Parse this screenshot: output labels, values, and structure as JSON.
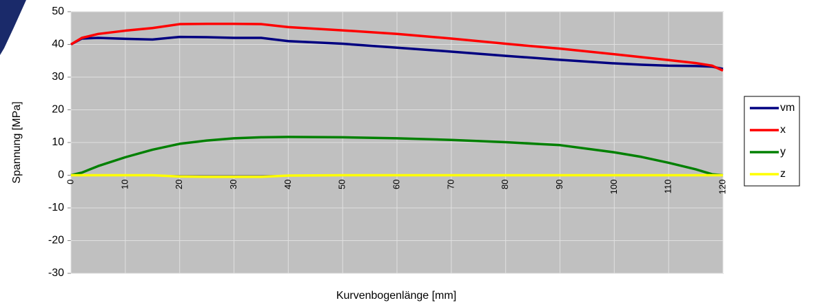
{
  "chart_data": {
    "type": "line",
    "x_label": "Kurvenbogenlänge [mm]",
    "y_label": "Spannung [MPa]",
    "x": [
      0,
      2,
      5,
      10,
      15,
      20,
      25,
      30,
      35,
      40,
      50,
      60,
      70,
      80,
      90,
      100,
      105,
      110,
      115,
      118,
      120
    ],
    "series": [
      {
        "name": "vm",
        "color": "#000080",
        "values": [
          40,
          41.8,
          42,
          41.7,
          41.5,
          42.3,
          42.2,
          42,
          42,
          41,
          40.2,
          39,
          37.8,
          36.5,
          35.3,
          34.2,
          33.8,
          33.5,
          33.4,
          33.2,
          32.5
        ]
      },
      {
        "name": "x",
        "color": "#ff0000",
        "values": [
          40,
          42,
          43.2,
          44.2,
          45,
          46.2,
          46.3,
          46.3,
          46.2,
          45.3,
          44.3,
          43.2,
          41.8,
          40.2,
          38.7,
          37,
          36.1,
          35.2,
          34.3,
          33.5,
          32
        ]
      },
      {
        "name": "y",
        "color": "#008000",
        "values": [
          0,
          0.8,
          2.8,
          5.5,
          7.8,
          9.6,
          10.6,
          11.3,
          11.6,
          11.7,
          11.6,
          11.3,
          10.8,
          10.1,
          9.2,
          7,
          5.6,
          3.8,
          1.8,
          0.3,
          0
        ]
      },
      {
        "name": "z",
        "color": "#ffff00",
        "values": [
          0,
          0,
          0,
          0,
          0,
          -0.4,
          -0.5,
          -0.5,
          -0.5,
          -0.1,
          0,
          0,
          0,
          0,
          0,
          0,
          0,
          0,
          0,
          0,
          0
        ]
      }
    ],
    "xlim": [
      0,
      120
    ],
    "xticks": [
      0,
      10,
      20,
      30,
      40,
      50,
      60,
      70,
      80,
      90,
      100,
      110,
      120
    ],
    "ylim": [
      -30,
      50
    ],
    "yticks": [
      -30,
      -20,
      -10,
      0,
      10,
      20,
      30,
      40,
      50
    ],
    "grid": true,
    "legend": "right"
  }
}
